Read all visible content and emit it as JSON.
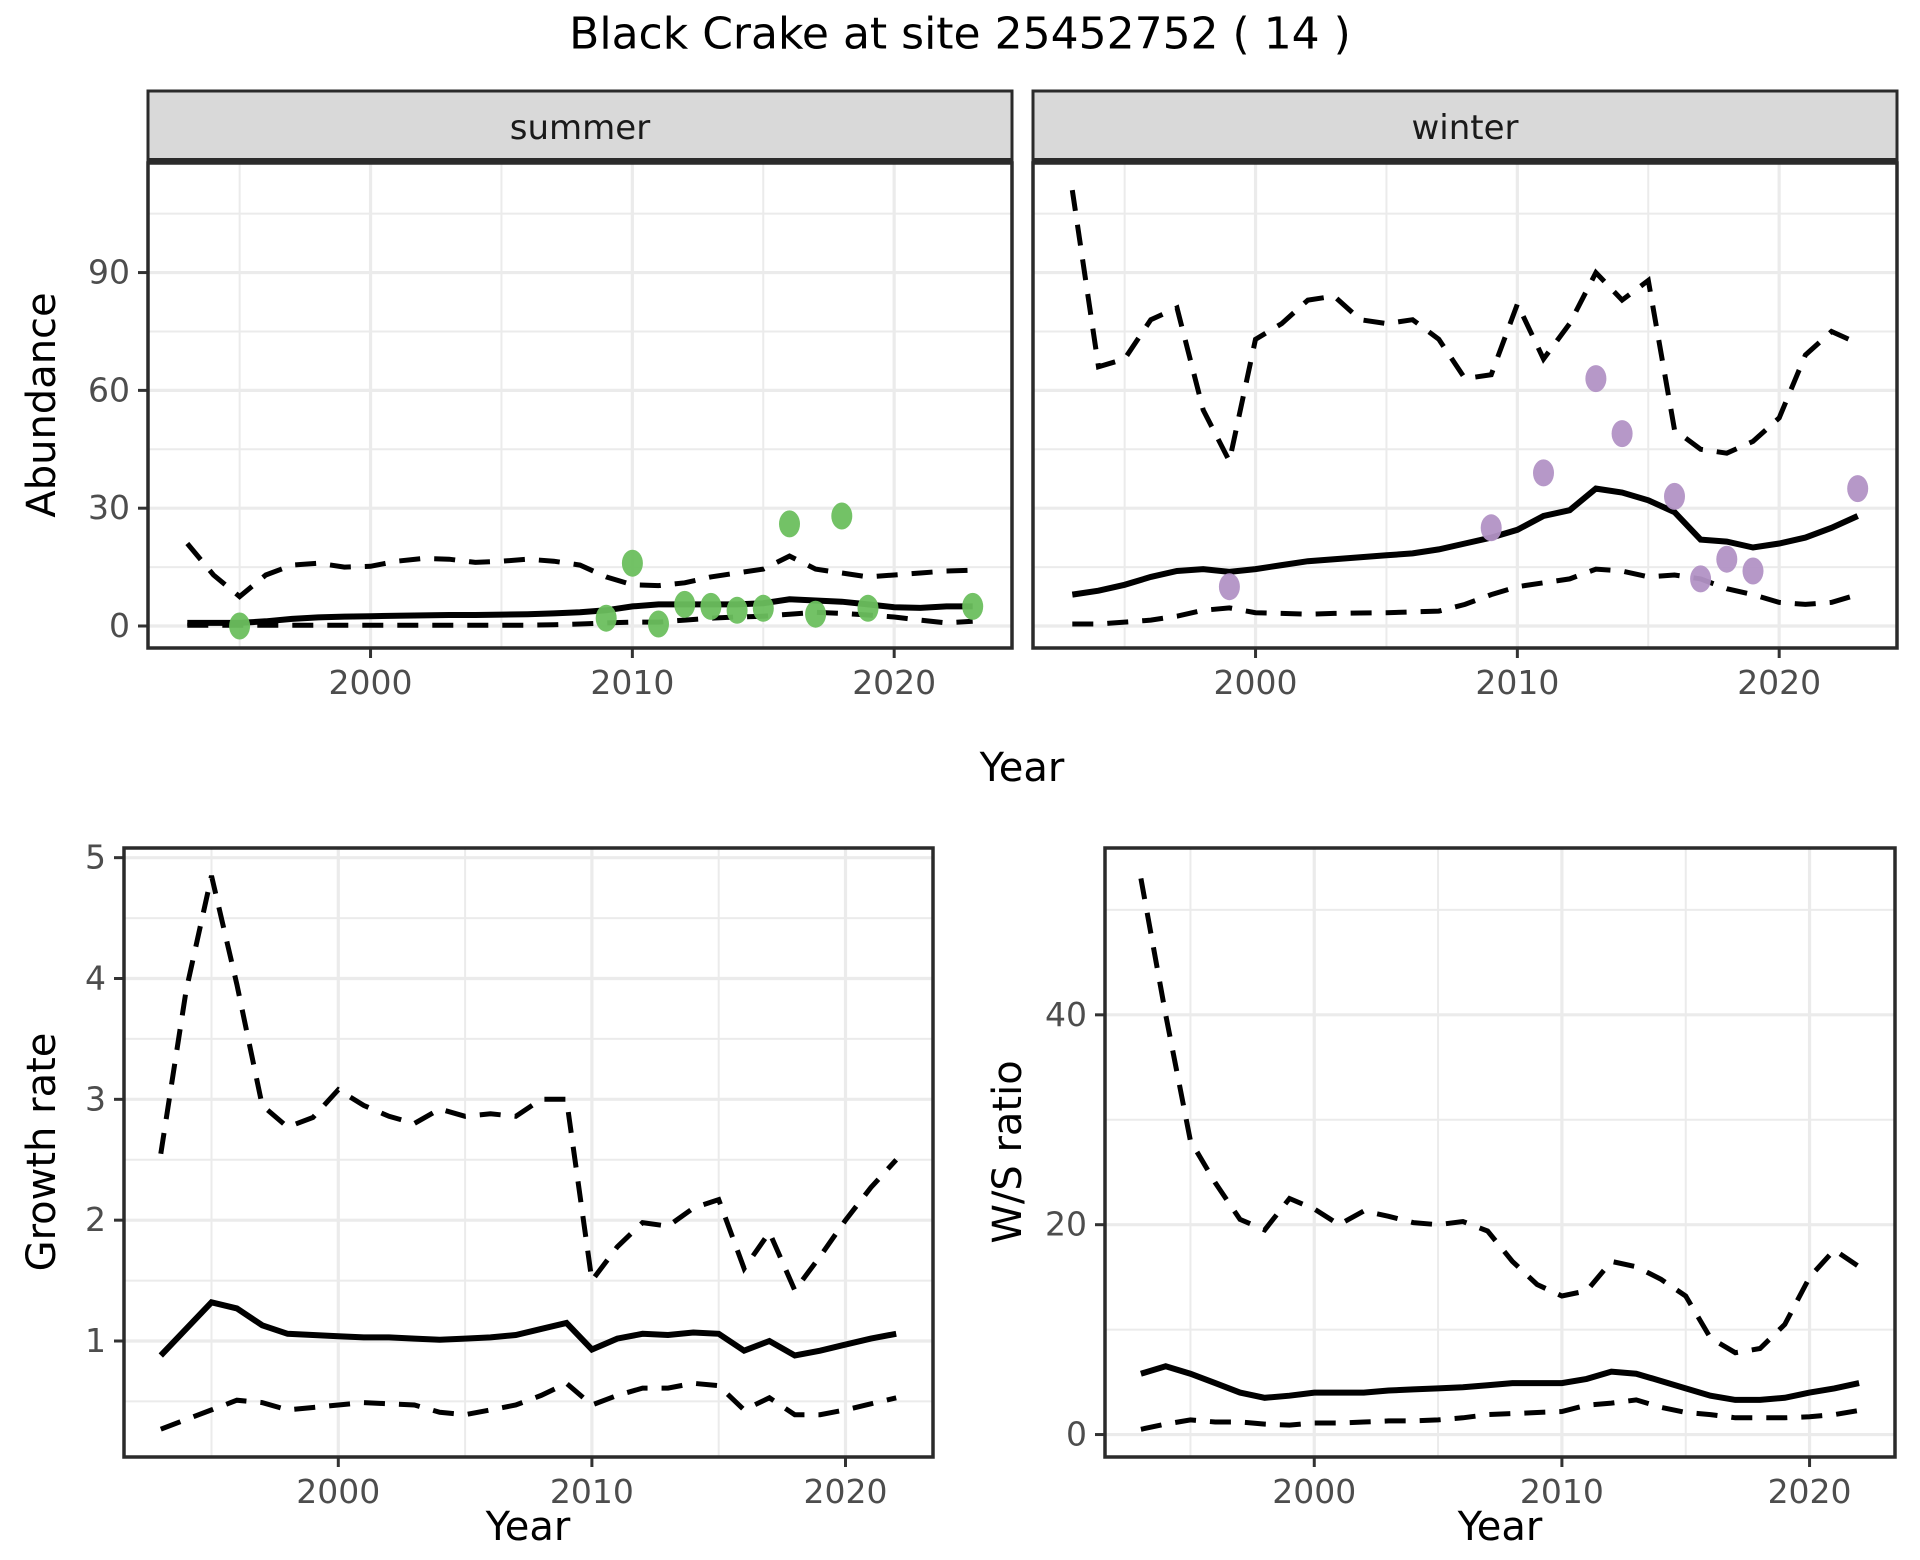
{
  "title": "Black Crake at site 25452752 ( 14 )",
  "axis_titles": {
    "x": "Year",
    "y_abundance": "Abundance",
    "y_growth": "Growth rate",
    "y_ws": "W/S ratio"
  },
  "colors": {
    "summer_point": "#6cbf5e",
    "winter_point": "#b292c5",
    "line": "#000000",
    "grid": "#ebebeb",
    "strip_fill": "#d9d9d9",
    "border": "#2b2b2b",
    "tick": "#333333",
    "tick_label": "#4d4d4d"
  },
  "chart_data": [
    {
      "id": "abundance-summer",
      "type": "line",
      "facet_label": "summer",
      "xlabel": "Year",
      "ylabel": "Abundance",
      "xlim": [
        1991.5,
        2024.5
      ],
      "ylim": [
        -5.6,
        117.9
      ],
      "x_major": [
        2000,
        2010,
        2020
      ],
      "x_minor": [
        1995,
        2005,
        2015
      ],
      "y_major": [
        0,
        30,
        60,
        90
      ],
      "y_minor": [
        15,
        45,
        75,
        105
      ],
      "x": [
        1993,
        1994,
        1995,
        1996,
        1997,
        1998,
        1999,
        2000,
        2001,
        2002,
        2003,
        2004,
        2005,
        2006,
        2007,
        2008,
        2009,
        2010,
        2011,
        2012,
        2013,
        2014,
        2015,
        2016,
        2017,
        2018,
        2019,
        2020,
        2021,
        2022,
        2023
      ],
      "series": [
        {
          "name": "upper-credible",
          "style": "dashed",
          "values": [
            21,
            13,
            7.5,
            13,
            15.5,
            16,
            15,
            15.2,
            16.5,
            17.2,
            17,
            16.2,
            16.5,
            17,
            16.5,
            15.5,
            12.5,
            10.5,
            10.3,
            11,
            12.5,
            13.5,
            14.5,
            17.8,
            14.5,
            13.5,
            12.5,
            13,
            13.5,
            14,
            14.2
          ]
        },
        {
          "name": "lower-credible",
          "style": "dashed",
          "values": [
            0.2,
            0.2,
            0.2,
            0.2,
            0.2,
            0.2,
            0.2,
            0.2,
            0.2,
            0.2,
            0.2,
            0.2,
            0.2,
            0.2,
            0.3,
            0.5,
            0.8,
            1,
            1,
            1.5,
            2,
            2.3,
            2.5,
            3,
            3.5,
            3.2,
            2.8,
            2.3,
            1.5,
            0.8,
            1.2
          ]
        },
        {
          "name": "median",
          "style": "solid",
          "values": [
            0.8,
            0.8,
            0.8,
            1.2,
            1.8,
            2.2,
            2.4,
            2.5,
            2.6,
            2.7,
            2.8,
            2.8,
            2.9,
            3,
            3.2,
            3.5,
            4,
            5,
            5.5,
            5.5,
            5.5,
            5.5,
            5.8,
            6.8,
            6.5,
            6.2,
            5.5,
            4.8,
            4.6,
            5,
            5
          ]
        }
      ],
      "points": {
        "name": "observed-counts-summer",
        "color_key": "summer_point",
        "x": [
          1995,
          2009,
          2010,
          2011,
          2012,
          2013,
          2014,
          2015,
          2016,
          2017,
          2018,
          2019,
          2023
        ],
        "y": [
          0,
          2,
          16,
          0.5,
          5.5,
          5,
          4,
          4.5,
          26,
          3,
          28,
          4.5,
          5
        ]
      }
    },
    {
      "id": "abundance-winter",
      "type": "line",
      "facet_label": "winter",
      "xlabel": "Year",
      "ylabel": "Abundance",
      "xlim": [
        1991.5,
        2024.5
      ],
      "ylim": [
        -5.6,
        117.9
      ],
      "x_major": [
        2000,
        2010,
        2020
      ],
      "x_minor": [
        1995,
        2005,
        2015
      ],
      "y_major": [
        0,
        30,
        60,
        90
      ],
      "y_minor": [
        15,
        45,
        75,
        105
      ],
      "x": [
        1993,
        1994,
        1995,
        1996,
        1997,
        1998,
        1999,
        2000,
        2001,
        2002,
        2003,
        2004,
        2005,
        2006,
        2007,
        2008,
        2009,
        2010,
        2011,
        2012,
        2013,
        2014,
        2015,
        2016,
        2017,
        2018,
        2019,
        2020,
        2021,
        2022,
        2023
      ],
      "series": [
        {
          "name": "upper-credible",
          "style": "dashed",
          "values": [
            111,
            66,
            68,
            78,
            81,
            55,
            42,
            73,
            77,
            83,
            84,
            78,
            77,
            78,
            73,
            63,
            64,
            82,
            68,
            77,
            90,
            83,
            88,
            50,
            45,
            44,
            47,
            53,
            69,
            75,
            72
          ]
        },
        {
          "name": "lower-credible",
          "style": "dashed",
          "values": [
            0.5,
            0.5,
            1,
            1.5,
            2.5,
            4,
            4.6,
            3.4,
            3.2,
            3,
            3.2,
            3.3,
            3.4,
            3.6,
            3.8,
            5.5,
            8,
            10,
            11,
            12,
            14.5,
            14,
            12.5,
            13,
            12,
            9.5,
            8,
            6,
            5.5,
            6,
            8
          ]
        },
        {
          "name": "median",
          "style": "solid",
          "values": [
            8,
            9,
            10.5,
            12.5,
            14,
            14.5,
            13.8,
            14.5,
            15.5,
            16.5,
            17,
            17.5,
            18,
            18.5,
            19.5,
            21,
            22.5,
            24.5,
            28,
            29.5,
            35,
            34,
            32,
            29,
            22,
            21.5,
            20,
            21,
            22.5,
            25,
            28
          ]
        }
      ],
      "points": {
        "name": "observed-counts-winter",
        "color_key": "winter_point",
        "x": [
          1999,
          2009,
          2011,
          2013,
          2014,
          2016,
          2017,
          2018,
          2019,
          2023
        ],
        "y": [
          10,
          25,
          39,
          63,
          49,
          33,
          12,
          17,
          14,
          35
        ]
      }
    },
    {
      "id": "growth-rate",
      "type": "line",
      "facet_label": "",
      "xlabel": "Year",
      "ylabel": "Growth rate",
      "xlim": [
        1991.55,
        2023.45
      ],
      "ylim": [
        0.04,
        5.08
      ],
      "x_major": [
        2000,
        2010,
        2020
      ],
      "x_minor": [
        1995,
        2005,
        2015
      ],
      "y_major": [
        1,
        2,
        3,
        4,
        5
      ],
      "y_minor": [
        0.5,
        1.5,
        2.5,
        3.5,
        4.5
      ],
      "x": [
        1993,
        1994,
        1995,
        1996,
        1997,
        1998,
        1999,
        2000,
        2001,
        2002,
        2003,
        2004,
        2005,
        2006,
        2007,
        2008,
        2009,
        2010,
        2011,
        2012,
        2013,
        2014,
        2015,
        2016,
        2017,
        2018,
        2019,
        2020,
        2021,
        2022
      ],
      "series": [
        {
          "name": "upper-credible",
          "style": "dashed",
          "values": [
            2.55,
            3.9,
            4.85,
            3.95,
            2.95,
            2.77,
            2.85,
            3.08,
            2.95,
            2.86,
            2.8,
            2.92,
            2.86,
            2.88,
            2.86,
            3,
            3,
            1.5,
            1.78,
            1.98,
            1.95,
            2.1,
            2.17,
            1.6,
            1.9,
            1.42,
            1.7,
            2,
            2.27,
            2.5
          ]
        },
        {
          "name": "lower-credible",
          "style": "dashed",
          "values": [
            0.27,
            0.35,
            0.43,
            0.51,
            0.49,
            0.43,
            0.45,
            0.47,
            0.49,
            0.48,
            0.47,
            0.41,
            0.39,
            0.43,
            0.47,
            0.55,
            0.65,
            0.47,
            0.55,
            0.61,
            0.61,
            0.65,
            0.63,
            0.43,
            0.53,
            0.39,
            0.39,
            0.43,
            0.48,
            0.53
          ]
        },
        {
          "name": "median",
          "style": "solid",
          "values": [
            0.88,
            1.1,
            1.32,
            1.27,
            1.13,
            1.06,
            1.05,
            1.04,
            1.03,
            1.03,
            1.02,
            1.01,
            1.02,
            1.03,
            1.05,
            1.1,
            1.15,
            0.93,
            1.02,
            1.06,
            1.05,
            1.07,
            1.06,
            0.92,
            1,
            0.88,
            0.92,
            0.97,
            1.02,
            1.06
          ]
        }
      ],
      "points": null
    },
    {
      "id": "ws-ratio",
      "type": "line",
      "facet_label": "",
      "xlabel": "Year",
      "ylabel": "W/S ratio",
      "xlim": [
        1991.55,
        2023.45
      ],
      "ylim": [
        -2.14,
        55.9
      ],
      "x_major": [
        2000,
        2010,
        2020
      ],
      "x_minor": [
        1995,
        2005,
        2015
      ],
      "y_major": [
        0,
        20,
        40
      ],
      "y_minor": [
        10,
        30,
        50
      ],
      "x": [
        1993,
        1994,
        1995,
        1996,
        1997,
        1998,
        1999,
        2000,
        2001,
        2002,
        2003,
        2004,
        2005,
        2006,
        2007,
        2008,
        2009,
        2010,
        2011,
        2012,
        2013,
        2014,
        2015,
        2016,
        2017,
        2018,
        2019,
        2020,
        2021,
        2022
      ],
      "series": [
        {
          "name": "upper-credible",
          "style": "dashed",
          "values": [
            53,
            40,
            28,
            24,
            20.5,
            19.5,
            22.5,
            21.5,
            20,
            21.3,
            20.8,
            20.2,
            20,
            20.3,
            19.4,
            16.5,
            14.3,
            13.2,
            13.7,
            16.5,
            16,
            14.8,
            13.2,
            9.2,
            7.8,
            8.2,
            10.5,
            15,
            17.6,
            16
          ]
        },
        {
          "name": "lower-credible",
          "style": "dashed",
          "values": [
            0.5,
            1,
            1.4,
            1.2,
            1.2,
            1,
            0.9,
            1.1,
            1.1,
            1.2,
            1.3,
            1.3,
            1.4,
            1.6,
            1.9,
            2,
            2.1,
            2.2,
            2.8,
            3,
            3.3,
            2.6,
            2.1,
            1.9,
            1.6,
            1.6,
            1.6,
            1.7,
            1.9,
            2.3
          ]
        },
        {
          "name": "median",
          "style": "solid",
          "values": [
            5.8,
            6.5,
            5.8,
            4.9,
            4,
            3.5,
            3.7,
            4,
            4,
            4,
            4.2,
            4.3,
            4.4,
            4.5,
            4.7,
            4.9,
            4.9,
            4.9,
            5.3,
            6,
            5.8,
            5.1,
            4.4,
            3.7,
            3.3,
            3.3,
            3.5,
            4,
            4.4,
            4.9
          ]
        }
      ],
      "points": null
    }
  ]
}
